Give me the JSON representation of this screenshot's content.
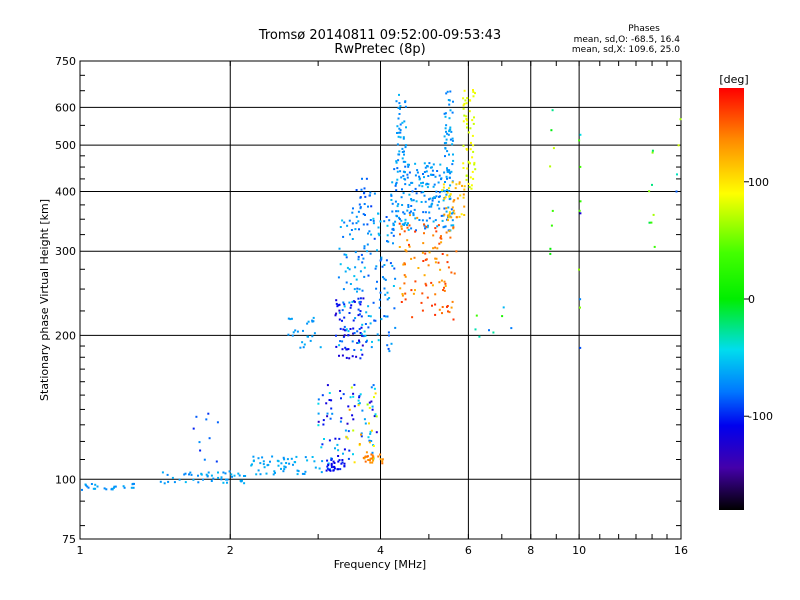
{
  "chart_data": {
    "type": "scatter",
    "title": "Tromsø 20140811 09:52:00-09:53:43",
    "subtitle": "RwPretec (8p)",
    "xlabel": "Frequency [MHz]",
    "ylabel": "Stationary phase Virtual Height [km]",
    "x_scale": "log",
    "y_scale": "log",
    "xlim": [
      1,
      16
    ],
    "ylim": [
      75,
      750
    ],
    "x_ticks": [
      1,
      2,
      4,
      6,
      8,
      10,
      16
    ],
    "x_tick_labels": [
      "1",
      "2",
      "4",
      "6",
      "8",
      "10",
      "16"
    ],
    "y_ticks": [
      75,
      100,
      200,
      300,
      400,
      500,
      600,
      750
    ],
    "y_tick_labels": [
      "75",
      "100",
      "200",
      "300",
      "400",
      "500",
      "600",
      "750"
    ],
    "grid": true,
    "legend": {
      "heading": "Phases",
      "line1": "mean, sd,O: -68.5, 16.4",
      "line2": "mean, sd,X: 109.6, 25.0",
      "placement": "top-right"
    },
    "colorbar": {
      "label": "[deg]",
      "range": [
        -180,
        180
      ],
      "ticks": [
        100,
        0,
        -100
      ],
      "tick_labels": [
        "100",
        "0",
        "-100"
      ]
    },
    "clusters": [
      {
        "x": [
          1.0,
          1.3
        ],
        "y": [
          95,
          98
        ],
        "phase": [
          -75,
          -60
        ],
        "n": 25
      },
      {
        "x": [
          1.45,
          2.2
        ],
        "y": [
          98,
          104
        ],
        "phase": [
          -75,
          -55
        ],
        "n": 50
      },
      {
        "x": [
          2.2,
          3.2
        ],
        "y": [
          102,
          112
        ],
        "phase": [
          -70,
          -55
        ],
        "n": 60
      },
      {
        "x": [
          1.65,
          1.9
        ],
        "y": [
          108,
          138
        ],
        "phase": [
          -110,
          -70
        ],
        "n": 10
      },
      {
        "x": [
          3.1,
          3.4
        ],
        "y": [
          104,
          110
        ],
        "phase": [
          -115,
          -95
        ],
        "n": 30
      },
      {
        "x": [
          3.0,
          3.95
        ],
        "y": [
          110,
          160
        ],
        "phase": [
          -130,
          -40
        ],
        "n": 80
      },
      {
        "x": [
          3.3,
          3.95
        ],
        "y": [
          108,
          160
        ],
        "phase": [
          60,
          130
        ],
        "n": 20
      },
      {
        "x": [
          3.7,
          4.05
        ],
        "y": [
          108,
          114
        ],
        "phase": [
          125,
          150
        ],
        "n": 25
      },
      {
        "x": [
          2.6,
          3.05
        ],
        "y": [
          188,
          218
        ],
        "phase": [
          -75,
          -55
        ],
        "n": 25
      },
      {
        "x": [
          3.25,
          3.7
        ],
        "y": [
          178,
          240
        ],
        "phase": [
          -130,
          -95
        ],
        "n": 60
      },
      {
        "x": [
          3.3,
          4.3
        ],
        "y": [
          185,
          360
        ],
        "phase": [
          -90,
          -50
        ],
        "n": 160
      },
      {
        "x": [
          3.5,
          3.9
        ],
        "y": [
          355,
          430
        ],
        "phase": [
          -95,
          -70
        ],
        "n": 25
      },
      {
        "x": [
          4.2,
          5.6
        ],
        "y": [
          330,
          460
        ],
        "phase": [
          -85,
          -55
        ],
        "n": 200
      },
      {
        "x": [
          4.3,
          4.5
        ],
        "y": [
          420,
          650
        ],
        "phase": [
          -80,
          -55
        ],
        "n": 45
      },
      {
        "x": [
          5.35,
          5.6
        ],
        "y": [
          420,
          650
        ],
        "phase": [
          -80,
          -55
        ],
        "n": 45
      },
      {
        "x": [
          4.35,
          5.7
        ],
        "y": [
          215,
          360
        ],
        "phase": [
          120,
          165
        ],
        "n": 110
      },
      {
        "x": [
          5.3,
          5.9
        ],
        "y": [
          350,
          420
        ],
        "phase": [
          95,
          140
        ],
        "n": 40
      },
      {
        "x": [
          5.85,
          6.2
        ],
        "y": [
          400,
          660
        ],
        "phase": [
          70,
          95
        ],
        "n": 55
      },
      {
        "x": [
          6.0,
          7.5
        ],
        "y": [
          190,
          230
        ],
        "phase": [
          -90,
          40
        ],
        "n": 8
      },
      {
        "x": [
          8.7,
          8.9
        ],
        "y": [
          290,
          620
        ],
        "phase": [
          -40,
          80
        ],
        "n": 8
      },
      {
        "x": [
          9.9,
          10.1
        ],
        "y": [
          160,
          650
        ],
        "phase": [
          -120,
          60
        ],
        "n": 10
      },
      {
        "x": [
          13.8,
          14.2
        ],
        "y": [
          300,
          560
        ],
        "phase": [
          -30,
          130
        ],
        "n": 8
      },
      {
        "x": [
          15.6,
          16.0
        ],
        "y": [
          370,
          700
        ],
        "phase": [
          -100,
          150
        ],
        "n": 4
      }
    ]
  }
}
